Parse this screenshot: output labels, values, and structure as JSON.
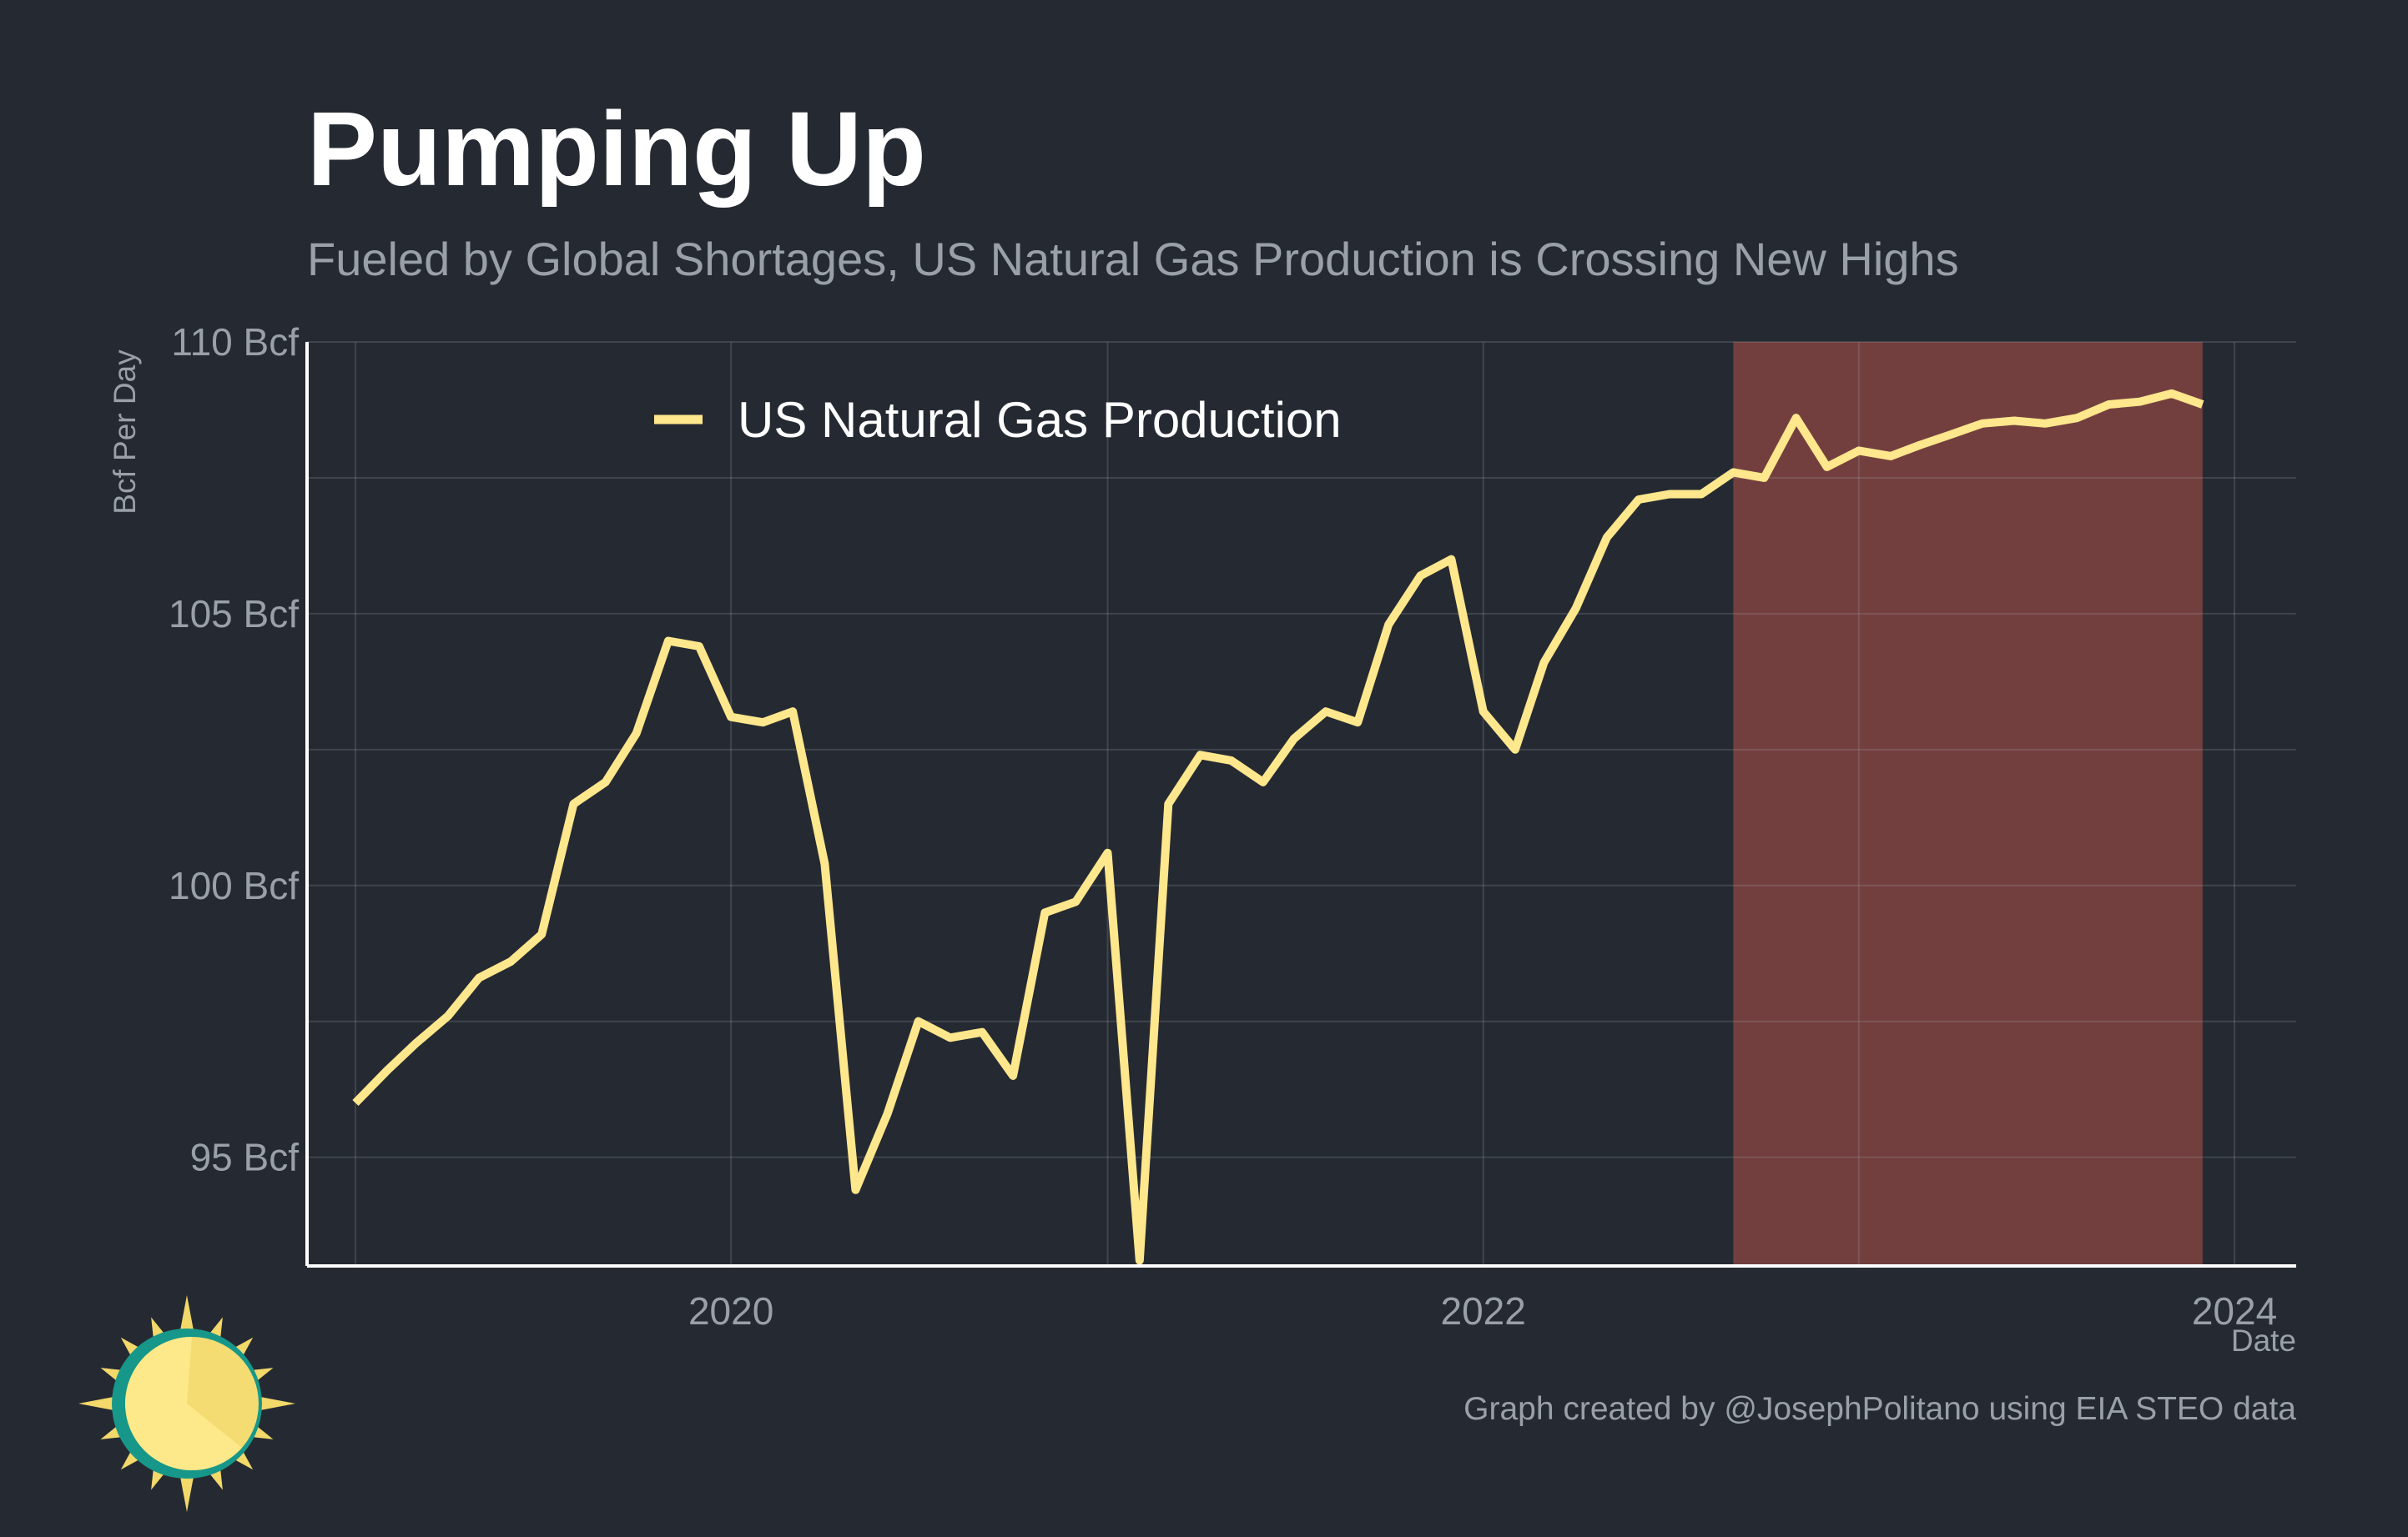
{
  "colors": {
    "background": "#252a32",
    "line": "#fee78c",
    "shade": "#733f3e",
    "grid": "#3c4048",
    "axis": "#ffffff",
    "text_muted": "#9aa0a8",
    "text_main": "#ffffff"
  },
  "logo": {
    "icon": "sun-logo-icon"
  },
  "chart_data": {
    "type": "line",
    "title": "Pumping Up",
    "subtitle": "Fueled by Global Shortages, US Natural Gas Production is Crossing New Highs",
    "xlabel": "Date",
    "ylabel": "Bcf Per Day",
    "caption": "Graph created by @JosephPolitano using EIA STEO data",
    "ylim": [
      93,
      110
    ],
    "xlim": [
      "2018-11-15",
      "2024-03-01"
    ],
    "y_ticks": [
      {
        "value": 95,
        "label": "95 Bcf"
      },
      {
        "value": 100,
        "label": "100 Bcf"
      },
      {
        "value": 105,
        "label": "105 Bcf"
      },
      {
        "value": 110,
        "label": "110 Bcf"
      }
    ],
    "x_ticks": [
      {
        "value": "2020-01-01",
        "label": "2020"
      },
      {
        "value": "2022-01-01",
        "label": "2022"
      },
      {
        "value": "2024-01-01",
        "label": "2024"
      }
    ],
    "grid": true,
    "legend_position": "top-left",
    "shaded_region": {
      "start": "2022-09-01",
      "end": "2023-12-01",
      "meaning": "forecast period"
    },
    "x": [
      "2019-01-01",
      "2019-02-01",
      "2019-03-01",
      "2019-04-01",
      "2019-05-01",
      "2019-06-01",
      "2019-07-01",
      "2019-08-01",
      "2019-09-01",
      "2019-10-01",
      "2019-11-01",
      "2019-12-01",
      "2020-01-01",
      "2020-02-01",
      "2020-03-01",
      "2020-04-01",
      "2020-05-01",
      "2020-06-01",
      "2020-07-01",
      "2020-08-01",
      "2020-09-01",
      "2020-10-01",
      "2020-11-01",
      "2020-12-01",
      "2021-01-01",
      "2021-02-01",
      "2021-03-01",
      "2021-04-01",
      "2021-05-01",
      "2021-06-01",
      "2021-07-01",
      "2021-08-01",
      "2021-09-01",
      "2021-10-01",
      "2021-11-01",
      "2021-12-01",
      "2022-01-01",
      "2022-02-01",
      "2022-03-01",
      "2022-04-01",
      "2022-05-01",
      "2022-06-01",
      "2022-07-01",
      "2022-08-01",
      "2022-09-01",
      "2022-10-01",
      "2022-11-01",
      "2022-12-01",
      "2023-01-01",
      "2023-02-01",
      "2023-03-01",
      "2023-04-01",
      "2023-05-01",
      "2023-06-01",
      "2023-07-01",
      "2023-08-01",
      "2023-09-01",
      "2023-10-01",
      "2023-11-01",
      "2023-12-01"
    ],
    "series": [
      {
        "name": "US Natural Gas Production",
        "values": [
          96.0,
          96.6,
          97.1,
          97.6,
          98.3,
          98.6,
          99.1,
          101.5,
          101.9,
          102.8,
          104.5,
          104.4,
          103.1,
          103.0,
          103.2,
          100.4,
          94.4,
          95.8,
          97.5,
          97.2,
          97.3,
          96.5,
          99.5,
          99.7,
          100.6,
          93.1,
          101.5,
          102.4,
          102.3,
          101.9,
          102.7,
          103.2,
          103.0,
          104.8,
          105.7,
          106.0,
          103.2,
          102.5,
          104.1,
          105.1,
          106.4,
          107.1,
          107.2,
          107.2,
          107.6,
          107.5,
          108.6,
          107.7,
          108.0,
          107.9,
          108.1,
          108.3,
          108.5,
          108.55,
          108.5,
          108.6,
          108.85,
          108.9,
          109.05,
          108.85
        ]
      }
    ]
  }
}
